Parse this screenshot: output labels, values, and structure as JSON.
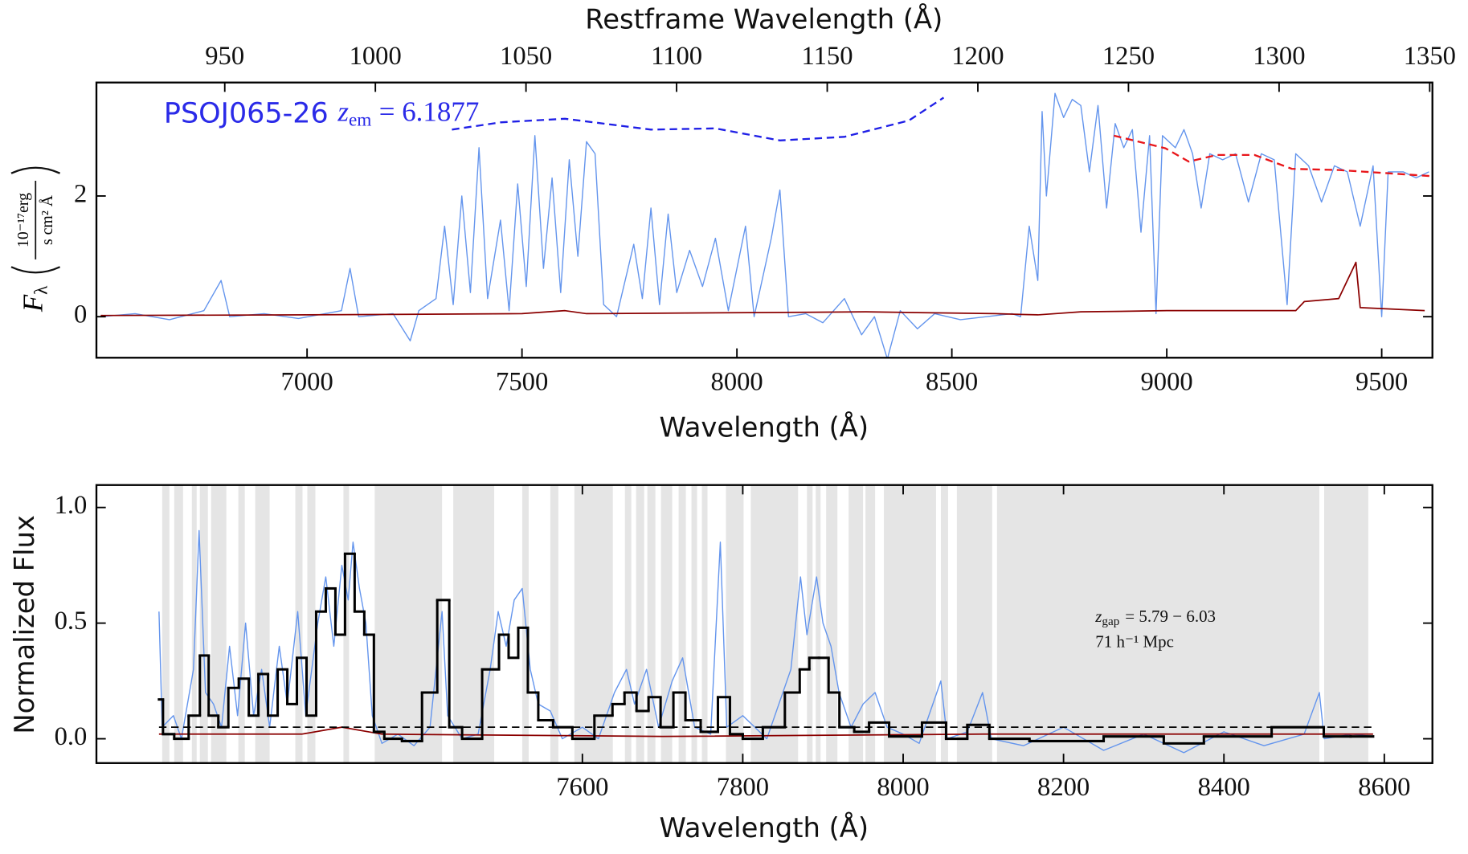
{
  "chart_data": [
    {
      "type": "line",
      "xlabel": "Wavelength (Å)",
      "x2label": "Restframe Wavelength (Å)",
      "ylabel": {
        "symbol": "F",
        "sub": "λ",
        "num": "10⁻¹⁷erg",
        "den": "s cm² Å"
      },
      "annotation": {
        "name": "PSOJ065-26",
        "z": "z",
        "sub": "em",
        "text": "= 6.1877",
        "color": "#2a2ae8"
      },
      "xlim": [
        6510,
        9618
      ],
      "ylim": [
        -0.68,
        3.88
      ],
      "xticks": [
        7000,
        7500,
        8000,
        8500,
        9000,
        9500
      ],
      "x2lim": [
        907.4,
        1350.9
      ],
      "x2ticks": [
        950,
        1000,
        1050,
        1100,
        1150,
        1200,
        1250,
        1300,
        1350
      ],
      "yticks": [
        0,
        2
      ],
      "series": [
        {
          "color": "#6495ed",
          "linewidth": 1.2,
          "x": [
            6520,
            6600,
            6680,
            6760,
            6800,
            6820,
            6900,
            6980,
            7080,
            7100,
            7120,
            7200,
            7240,
            7260,
            7300,
            7320,
            7340,
            7360,
            7380,
            7400,
            7420,
            7450,
            7470,
            7490,
            7510,
            7530,
            7550,
            7570,
            7590,
            7610,
            7630,
            7650,
            7670,
            7690,
            7720,
            7760,
            7780,
            7800,
            7820,
            7840,
            7860,
            7890,
            7920,
            7950,
            7980,
            8020,
            8040,
            8080,
            8100,
            8120,
            8160,
            8200,
            8250,
            8290,
            8320,
            8350,
            8380,
            8420,
            8460,
            8520,
            8580,
            8640,
            8660,
            8680,
            8700,
            8710,
            8720,
            8740,
            8760,
            8780,
            8800,
            8820,
            8840,
            8860,
            8880,
            8900,
            8920,
            8940,
            8960,
            8975,
            8990,
            9020,
            9040,
            9060,
            9080,
            9100,
            9130,
            9160,
            9190,
            9220,
            9250,
            9280,
            9300,
            9330,
            9360,
            9390,
            9420,
            9450,
            9480,
            9500,
            9515,
            9550,
            9580,
            9610
          ],
          "values": [
            0.0,
            0.05,
            -0.05,
            0.1,
            0.6,
            0.0,
            0.05,
            -0.03,
            0.1,
            0.8,
            0.0,
            0.05,
            -0.4,
            0.1,
            0.3,
            1.5,
            0.2,
            2.0,
            0.4,
            2.8,
            0.3,
            1.6,
            0.1,
            2.2,
            0.5,
            3.0,
            0.8,
            2.3,
            0.4,
            2.6,
            1.0,
            2.9,
            2.7,
            0.2,
            0.0,
            1.2,
            0.3,
            1.8,
            0.2,
            1.7,
            0.4,
            1.1,
            0.5,
            1.3,
            0.1,
            1.5,
            0.0,
            1.3,
            2.1,
            0.0,
            0.05,
            -0.1,
            0.3,
            -0.3,
            0.0,
            -0.7,
            0.1,
            -0.2,
            0.05,
            -0.05,
            0.0,
            0.05,
            0.0,
            1.5,
            0.6,
            3.4,
            2.0,
            3.7,
            3.3,
            3.6,
            3.5,
            2.4,
            3.5,
            1.8,
            3.2,
            2.8,
            3.1,
            1.4,
            3.0,
            0.05,
            3.0,
            2.8,
            3.1,
            2.7,
            1.8,
            2.7,
            2.6,
            2.7,
            1.9,
            2.7,
            2.6,
            0.2,
            2.7,
            2.5,
            1.9,
            2.5,
            2.4,
            1.5,
            2.5,
            0.0,
            2.4,
            2.4,
            2.3,
            2.4
          ]
        },
        {
          "color": "#8b0000",
          "linewidth": 1.5,
          "x": [
            6520,
            7000,
            7500,
            7600,
            7650,
            8300,
            8600,
            8700,
            8800,
            9000,
            9300,
            9320,
            9400,
            9440,
            9450,
            9600
          ],
          "values": [
            0.02,
            0.03,
            0.05,
            0.1,
            0.05,
            0.08,
            0.05,
            0.03,
            0.08,
            0.1,
            0.1,
            0.25,
            0.3,
            0.9,
            0.15,
            0.1
          ]
        },
        {
          "color": "#1f1fe6",
          "linewidth": 2,
          "linestyle": "dashed",
          "x": [
            7337,
            7450,
            7600,
            7800,
            7950,
            8100,
            8250,
            8400,
            8481
          ],
          "values": [
            3.1,
            3.22,
            3.28,
            3.1,
            3.12,
            2.92,
            2.98,
            3.25,
            3.63
          ]
        },
        {
          "color": "#e8161a",
          "linewidth": 2,
          "linestyle": "dashed",
          "x": [
            8877,
            8997,
            9051,
            9117,
            9204,
            9291,
            9400,
            9613
          ],
          "values": [
            3.0,
            2.79,
            2.57,
            2.68,
            2.68,
            2.45,
            2.43,
            2.33
          ]
        }
      ]
    },
    {
      "type": "line",
      "xlabel": "Wavelength (Å)",
      "ylabel": "Normalized Flux",
      "annotation": {
        "z": "z",
        "sub": "gap",
        "text": "= 5.79 − 6.03",
        "line2": "71 h⁻¹ Mpc"
      },
      "xlim": [
        6994,
        8660
      ],
      "ylim": [
        -0.105,
        1.097
      ],
      "xticks": [
        7600,
        7800,
        8000,
        8200,
        8400,
        8600
      ],
      "yticks": [
        {
          "value": 0,
          "label": "0.0"
        },
        {
          "value": 0.5,
          "label": "0.5"
        },
        {
          "value": 1,
          "label": "1.0"
        }
      ],
      "shade_color": "#e5e5e5",
      "shaded_regions": [
        [
          7076,
          7085
        ],
        [
          7091,
          7102
        ],
        [
          7113,
          7119
        ],
        [
          7123,
          7133
        ],
        [
          7137,
          7156
        ],
        [
          7171,
          7179
        ],
        [
          7192,
          7210
        ],
        [
          7242,
          7251
        ],
        [
          7257,
          7267
        ],
        [
          7302,
          7309
        ],
        [
          7341,
          7425
        ],
        [
          7439,
          7490
        ],
        [
          7525,
          7533
        ],
        [
          7560,
          7570
        ],
        [
          7590,
          7638
        ],
        [
          7653,
          7661
        ],
        [
          7667,
          7677
        ],
        [
          7681,
          7691
        ],
        [
          7698,
          7712
        ],
        [
          7720,
          7729
        ],
        [
          7736,
          7743
        ],
        [
          7749,
          7756
        ],
        [
          7779,
          7801
        ],
        [
          7810,
          7869
        ],
        [
          7880,
          7887
        ],
        [
          7891,
          7897
        ],
        [
          7904,
          7918
        ],
        [
          7932,
          7950
        ],
        [
          7953,
          7965
        ],
        [
          7976,
          8041
        ],
        [
          8047,
          8056
        ],
        [
          8067,
          8111
        ],
        [
          8117,
          8519
        ],
        [
          8525,
          8580
        ]
      ],
      "series": [
        {
          "color": "#6495ed",
          "linewidth": 1.2,
          "x": [
            7072,
            7076,
            7090,
            7100,
            7115,
            7122,
            7130,
            7140,
            7150,
            7160,
            7170,
            7180,
            7190,
            7200,
            7210,
            7222,
            7232,
            7245,
            7255,
            7270,
            7280,
            7290,
            7300,
            7308,
            7314,
            7322,
            7330,
            7338,
            7350,
            7370,
            7390,
            7410,
            7425,
            7432,
            7450,
            7470,
            7485,
            7495,
            7505,
            7515,
            7525,
            7535,
            7545,
            7560,
            7575,
            7600,
            7620,
            7640,
            7655,
            7665,
            7680,
            7695,
            7712,
            7725,
            7740,
            7760,
            7772,
            7780,
            7800,
            7830,
            7860,
            7872,
            7880,
            7892,
            7900,
            7910,
            7920,
            7935,
            7950,
            7965,
            7980,
            8000,
            8020,
            8047,
            8055,
            8080,
            8099,
            8110,
            8150,
            8200,
            8250,
            8300,
            8350,
            8400,
            8450,
            8500,
            8519,
            8525,
            8560,
            8586
          ],
          "values": [
            0.55,
            0.05,
            0.1,
            0.0,
            0.3,
            0.9,
            0.2,
            0.15,
            0.05,
            0.4,
            0.1,
            0.5,
            0.1,
            0.3,
            0.05,
            0.4,
            0.15,
            0.55,
            0.1,
            0.5,
            0.7,
            0.4,
            0.75,
            0.6,
            0.85,
            0.65,
            0.5,
            0.1,
            -0.02,
            0.02,
            -0.03,
            0.05,
            0.55,
            0.1,
            0.0,
            0.02,
            0.3,
            0.55,
            0.4,
            0.6,
            0.65,
            0.3,
            0.15,
            0.12,
            0.0,
            0.05,
            0.0,
            0.2,
            0.3,
            0.15,
            0.3,
            0.05,
            0.25,
            0.35,
            0.05,
            0.02,
            0.85,
            0.05,
            0.1,
            0.0,
            0.3,
            0.7,
            0.45,
            0.7,
            0.5,
            0.4,
            0.2,
            0.05,
            0.15,
            0.2,
            0.05,
            0.02,
            -0.02,
            0.25,
            0.0,
            0.03,
            0.2,
            0.0,
            -0.03,
            0.05,
            -0.05,
            0.02,
            -0.06,
            0.03,
            -0.03,
            0.02,
            0.2,
            0.0,
            0.02,
            0.01
          ]
        },
        {
          "color": "#8b0000",
          "linewidth": 1.5,
          "x": [
            7072,
            7250,
            7300,
            7350,
            7700,
            8100,
            8586
          ],
          "values": [
            0.02,
            0.02,
            0.05,
            0.02,
            0.01,
            0.02,
            0.02
          ]
        },
        {
          "color": "#000000",
          "linewidth": 1.5,
          "linestyle": "dashed",
          "x": [
            7072,
            8586
          ],
          "values": [
            0.05,
            0.05
          ]
        },
        {
          "color": "#000000",
          "linewidth": 2.6,
          "drawstyle": "steps",
          "x": [
            7072,
            7082,
            7100,
            7118,
            7128,
            7140,
            7152,
            7165,
            7178,
            7190,
            7202,
            7214,
            7226,
            7238,
            7250,
            7262,
            7274,
            7286,
            7298,
            7310,
            7322,
            7334,
            7346,
            7360,
            7390,
            7410,
            7428,
            7440,
            7460,
            7490,
            7502,
            7514,
            7526,
            7538,
            7552,
            7575,
            7600,
            7630,
            7645,
            7660,
            7675,
            7690,
            7705,
            7722,
            7735,
            7760,
            7778,
            7790,
            7810,
            7840,
            7865,
            7877,
            7889,
            7901,
            7913,
            7928,
            7950,
            7965,
            8000,
            8047,
            8060,
            8100,
            8115,
            8200,
            8300,
            8350,
            8400,
            8519,
            8530,
            8586
          ],
          "values": [
            0.17,
            0.02,
            0.0,
            0.1,
            0.36,
            0.1,
            0.05,
            0.22,
            0.26,
            0.1,
            0.28,
            0.1,
            0.3,
            0.15,
            0.35,
            0.1,
            0.55,
            0.65,
            0.45,
            0.8,
            0.55,
            0.45,
            0.03,
            0.0,
            -0.01,
            0.2,
            0.6,
            0.05,
            0.0,
            0.3,
            0.45,
            0.35,
            0.48,
            0.2,
            0.08,
            0.05,
            0.0,
            0.1,
            0.15,
            0.2,
            0.12,
            0.18,
            0.05,
            0.2,
            0.08,
            0.03,
            0.18,
            0.02,
            0.0,
            0.05,
            0.2,
            0.3,
            0.35,
            0.35,
            0.2,
            0.05,
            0.03,
            0.07,
            0.01,
            0.07,
            0.0,
            0.06,
            0.0,
            -0.01,
            0.01,
            -0.02,
            0.01,
            0.05,
            0.01,
            0.01
          ]
        }
      ]
    }
  ]
}
